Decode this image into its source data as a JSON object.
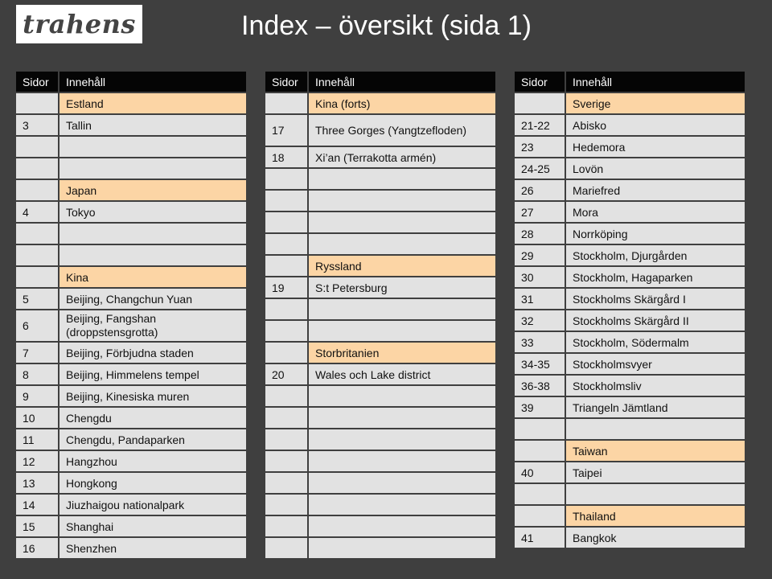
{
  "header": {
    "logo_text": "trahens",
    "title": "Index – översikt (sida 1)"
  },
  "columns": {
    "pages": "Sidor",
    "content": "Innehåll"
  },
  "tables": [
    {
      "rows": [
        {
          "page": "",
          "content": "Estland",
          "category": true,
          "h": 25
        },
        {
          "page": "3",
          "content": "Tallin",
          "h": 25
        },
        {
          "page": "",
          "content": "",
          "h": 25
        },
        {
          "page": "",
          "content": "",
          "h": 25
        },
        {
          "page": "",
          "content": "Japan",
          "category": true,
          "h": 25
        },
        {
          "page": "4",
          "content": "Tokyo",
          "h": 25
        },
        {
          "page": "",
          "content": "",
          "h": 25
        },
        {
          "page": "",
          "content": "",
          "h": 25
        },
        {
          "page": "",
          "content": "Kina",
          "category": true,
          "h": 25
        },
        {
          "page": "5",
          "content": "Beijing, Changchun Yuan",
          "h": 25
        },
        {
          "page": "6",
          "content": "Beijing, Fangshan (droppstensgrotta)",
          "h": 38,
          "wrap": true
        },
        {
          "page": "7",
          "content": "Beijing, Förbjudna staden",
          "h": 25
        },
        {
          "page": "8",
          "content": "Beijing, Himmelens tempel",
          "h": 25
        },
        {
          "page": "9",
          "content": "Beijing, Kinesiska muren",
          "h": 25
        },
        {
          "page": "10",
          "content": "Chengdu",
          "h": 25
        },
        {
          "page": "11",
          "content": "Chengdu, Pandaparken",
          "h": 25
        },
        {
          "page": "12",
          "content": "Hangzhou",
          "h": 25
        },
        {
          "page": "13",
          "content": "Hongkong",
          "h": 25
        },
        {
          "page": "14",
          "content": "Jiuzhaigou nationalpark",
          "h": 25
        },
        {
          "page": "15",
          "content": "Shanghai",
          "h": 25
        },
        {
          "page": "16",
          "content": "Shenzhen",
          "h": 25
        }
      ]
    },
    {
      "rows": [
        {
          "page": "",
          "content": "Kina (forts)",
          "category": true,
          "h": 25
        },
        {
          "page": "17",
          "content": "Three Gorges (Yangtzefloden)",
          "h": 38,
          "wrap": true
        },
        {
          "page": "18",
          "content": "Xi’an (Terrakotta armén)",
          "h": 25
        },
        {
          "page": "",
          "content": "",
          "h": 25
        },
        {
          "page": "",
          "content": "",
          "h": 25
        },
        {
          "page": "",
          "content": "",
          "h": 25
        },
        {
          "page": "",
          "content": "",
          "h": 25
        },
        {
          "page": "",
          "content": "Ryssland",
          "category": true,
          "h": 25
        },
        {
          "page": "19",
          "content": "S:t Petersburg",
          "h": 25
        },
        {
          "page": "",
          "content": "",
          "h": 25
        },
        {
          "page": "",
          "content": "",
          "h": 25
        },
        {
          "page": "",
          "content": "Storbritanien",
          "category": true,
          "h": 25
        },
        {
          "page": "20",
          "content": "Wales och Lake district",
          "h": 25
        },
        {
          "page": "",
          "content": "",
          "h": 25
        },
        {
          "page": "",
          "content": "",
          "h": 25
        },
        {
          "page": "",
          "content": "",
          "h": 25
        },
        {
          "page": "",
          "content": "",
          "h": 25
        },
        {
          "page": "",
          "content": "",
          "h": 25
        },
        {
          "page": "",
          "content": "",
          "h": 25
        },
        {
          "page": "",
          "content": "",
          "h": 25
        },
        {
          "page": "",
          "content": "",
          "h": 25
        }
      ]
    },
    {
      "rows": [
        {
          "page": "",
          "content": "Sverige",
          "category": true,
          "h": 25
        },
        {
          "page": "21-22",
          "content": "Abisko",
          "h": 25
        },
        {
          "page": "23",
          "content": "Hedemora",
          "h": 25
        },
        {
          "page": "24-25",
          "content": "Lovön",
          "h": 25
        },
        {
          "page": "26",
          "content": "Mariefred",
          "h": 25
        },
        {
          "page": "27",
          "content": "Mora",
          "h": 25
        },
        {
          "page": "28",
          "content": "Norrköping",
          "h": 25
        },
        {
          "page": "29",
          "content": "Stockholm, Djurgården",
          "h": 25
        },
        {
          "page": "30",
          "content": "Stockholm, Hagaparken",
          "h": 25
        },
        {
          "page": "31",
          "content": "Stockholms Skärgård I",
          "h": 25
        },
        {
          "page": "32",
          "content": "Stockholms Skärgård II",
          "h": 25
        },
        {
          "page": "33",
          "content": "Stockholm, Södermalm",
          "h": 25
        },
        {
          "page": "34-35",
          "content": "Stockholmsvyer",
          "h": 25
        },
        {
          "page": "36-38",
          "content": "Stockholmsliv",
          "h": 25
        },
        {
          "page": "39",
          "content": "Triangeln Jämtland",
          "h": 25
        },
        {
          "page": "",
          "content": "",
          "h": 25
        },
        {
          "page": "",
          "content": "Taiwan",
          "category": true,
          "h": 25
        },
        {
          "page": "40",
          "content": "Taipei",
          "h": 25
        },
        {
          "page": "",
          "content": "",
          "h": 25
        },
        {
          "page": "",
          "content": "Thailand",
          "category": true,
          "h": 25
        },
        {
          "page": "41",
          "content": "Bangkok",
          "h": 25
        }
      ]
    }
  ]
}
